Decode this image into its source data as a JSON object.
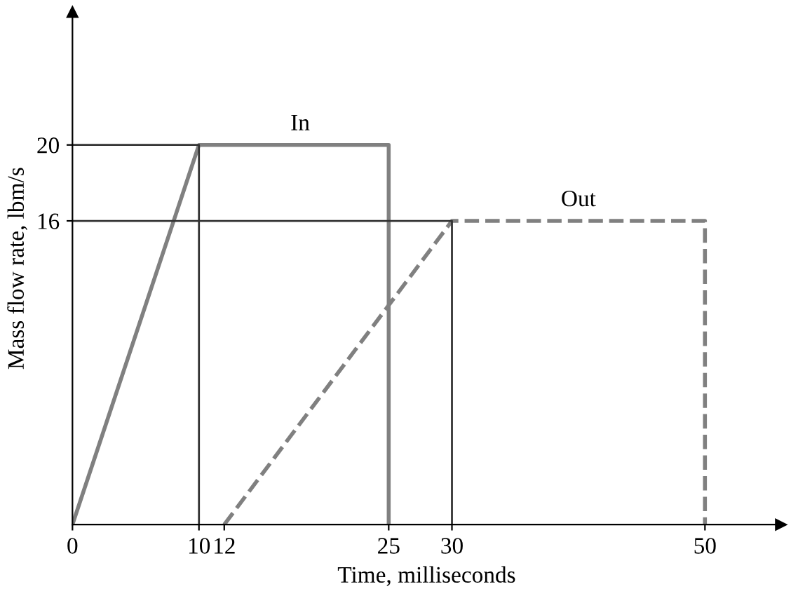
{
  "chart_data": {
    "type": "line",
    "xlabel": "Time, milliseconds",
    "ylabel": "Mass flow rate, lbm/s",
    "xlim": [
      0,
      56
    ],
    "ylim": [
      0,
      27
    ],
    "xticks": [
      0,
      10,
      12,
      25,
      30,
      50
    ],
    "yticks": [
      16,
      20
    ],
    "series": [
      {
        "x": [
          0,
          10,
          25,
          25
        ],
        "values": [
          0,
          20,
          20,
          0
        ],
        "color": "#808080",
        "line_style": "solid"
      },
      {
        "x": [
          12,
          30,
          50,
          50
        ],
        "values": [
          0,
          16,
          16,
          0
        ],
        "color": "#808080",
        "line_style": "dashed"
      },
      {
        "x": [
          0,
          10,
          10
        ],
        "values": [
          20,
          20,
          0
        ],
        "color": "#333333",
        "line_style": "solid"
      },
      {
        "x": [
          0,
          30,
          30
        ],
        "values": [
          16,
          16,
          0
        ],
        "color": "#333333",
        "line_style": "solid"
      }
    ],
    "annotations": [
      {
        "text": "In",
        "x": 18,
        "y": 20
      },
      {
        "text": "Out",
        "x": 40,
        "y": 16
      }
    ]
  }
}
